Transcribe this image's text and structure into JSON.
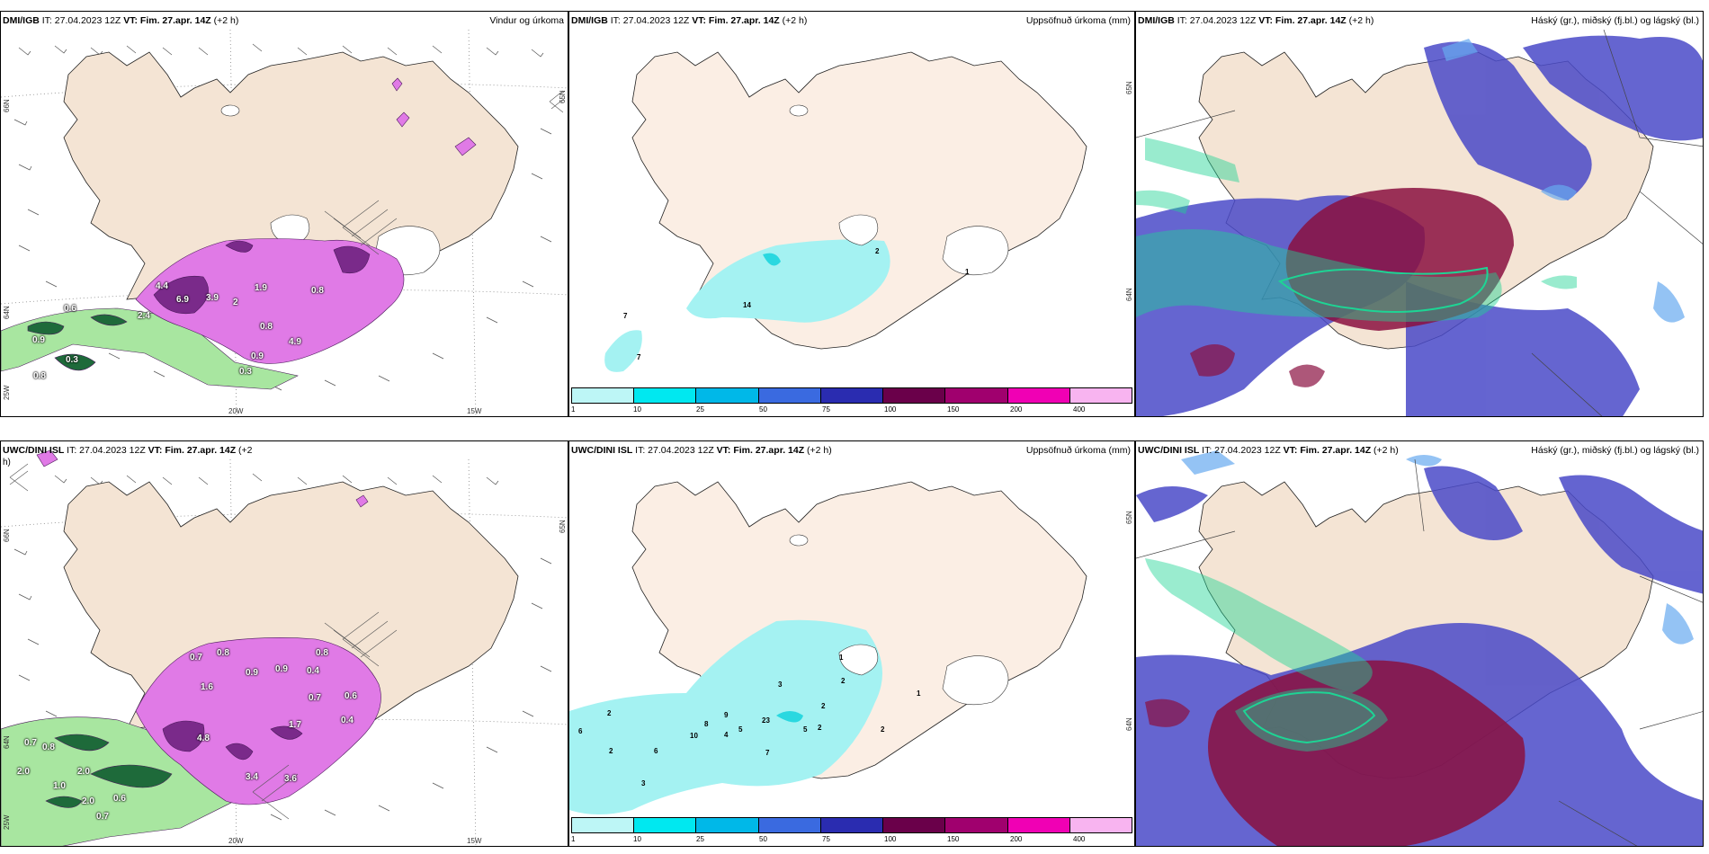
{
  "panels": [
    {
      "id": "dmi-wind",
      "model": "DMI/IGB",
      "it": "IT: 27.04.2023 12Z",
      "vt_label": "VT: Fim. 27.apr. 14Z",
      "lead": "(+2 h)",
      "right_title": "Vindur og úrkoma",
      "lat_labels": [
        "66N",
        "64N",
        "65N"
      ],
      "lon_labels": [
        "20W",
        "15W",
        "25W"
      ],
      "values": [
        "0.6",
        "0.9",
        "0.3",
        "0.8",
        "4.4",
        "2.4",
        "6.9",
        "3.9",
        "2",
        "1.9",
        "0.8",
        "0.8",
        "4.9",
        "0.9",
        "0.3"
      ]
    },
    {
      "id": "dmi-accum",
      "model": "DMI/IGB",
      "it": "IT: 27.04.2023 12Z",
      "vt_label": "VT: Fim. 27.apr. 14Z",
      "lead": "(+2 h)",
      "right_title": "Uppsöfnuð úrkoma (mm)",
      "lat_labels": [
        "65N",
        "64N"
      ],
      "values": [
        "7",
        "7",
        "14",
        "2",
        "1"
      ]
    },
    {
      "id": "dmi-cloud",
      "model": "DMI/IGB",
      "it": "IT: 27.04.2023 12Z",
      "vt_label": "VT: Fim. 27.apr. 14Z",
      "lead": "(+2 h)",
      "right_title": "Háský (gr.), miðský (fj.bl.) og lágský (bl.)"
    },
    {
      "id": "uwc-wind",
      "model": "UWC/DINI ISL",
      "it": "IT: 27.04.2023 12Z",
      "vt_label": "VT: Fim. 27.apr. 14Z",
      "lead": "(+2",
      "lead_wrap": "h)",
      "right_title": "",
      "lat_labels": [
        "66N",
        "64N",
        "65N"
      ],
      "lon_labels": [
        "20W",
        "15W",
        "25W"
      ],
      "values": [
        "0.7",
        "0.8",
        "2.0",
        "1.0",
        "2.0",
        "2.0",
        "0.7",
        "0.6",
        "0.7",
        "0.9",
        "1.6",
        "0.9",
        "0.4",
        "0.7",
        "0.6",
        "0.4",
        "3.4",
        "3.6",
        "1.7",
        "4.8",
        "0.8",
        "0.8"
      ]
    },
    {
      "id": "uwc-accum",
      "model": "UWC/DINI ISL",
      "it": "IT: 27.04.2023 12Z",
      "vt_label": "VT: Fim. 27.apr. 14Z",
      "lead": "(+2 h)",
      "right_title": "Uppsöfnuð úrkoma (mm)",
      "lat_labels": [
        "65N",
        "64N"
      ],
      "values": [
        "1",
        "2",
        "3",
        "2",
        "6",
        "2",
        "6",
        "3",
        "10",
        "8",
        "4",
        "5",
        "9",
        "23",
        "7",
        "2",
        "5",
        "2",
        "1",
        "2"
      ]
    },
    {
      "id": "uwc-cloud",
      "model": "UWC/DINI ISL",
      "it": "IT: 27.04.2023 12Z",
      "vt_label": "VT: Fim. 27.apr. 14Z",
      "lead": "(+2 h)",
      "right_title": "Háský (gr.), miðský (fj.bl.) og lágský (bl.)"
    }
  ],
  "colorbar": {
    "ticks": [
      "1",
      "10",
      "25",
      "50",
      "75",
      "100",
      "150",
      "200",
      "400"
    ],
    "colors": [
      "#bdf6f6",
      "#00e8f0",
      "#00b8e8",
      "#3a6ae0",
      "#2a2cb0",
      "#6a004a",
      "#a0006e",
      "#f000b4",
      "#f8b4f0"
    ]
  },
  "colors": {
    "land": "#f4e4d4",
    "land_accum": "#fbeee4",
    "precip_magenta": "#e07ae6",
    "precip_dark": "#7a2a8a",
    "precip_green": "#a8e6a0",
    "precip_darkgreen": "#1e6a3a",
    "accum_cyan": "#a4f2f2",
    "high_cloud": "#1ed494",
    "mid_cloud": "#8a1040",
    "low_cloud": "#4a4ac8"
  }
}
